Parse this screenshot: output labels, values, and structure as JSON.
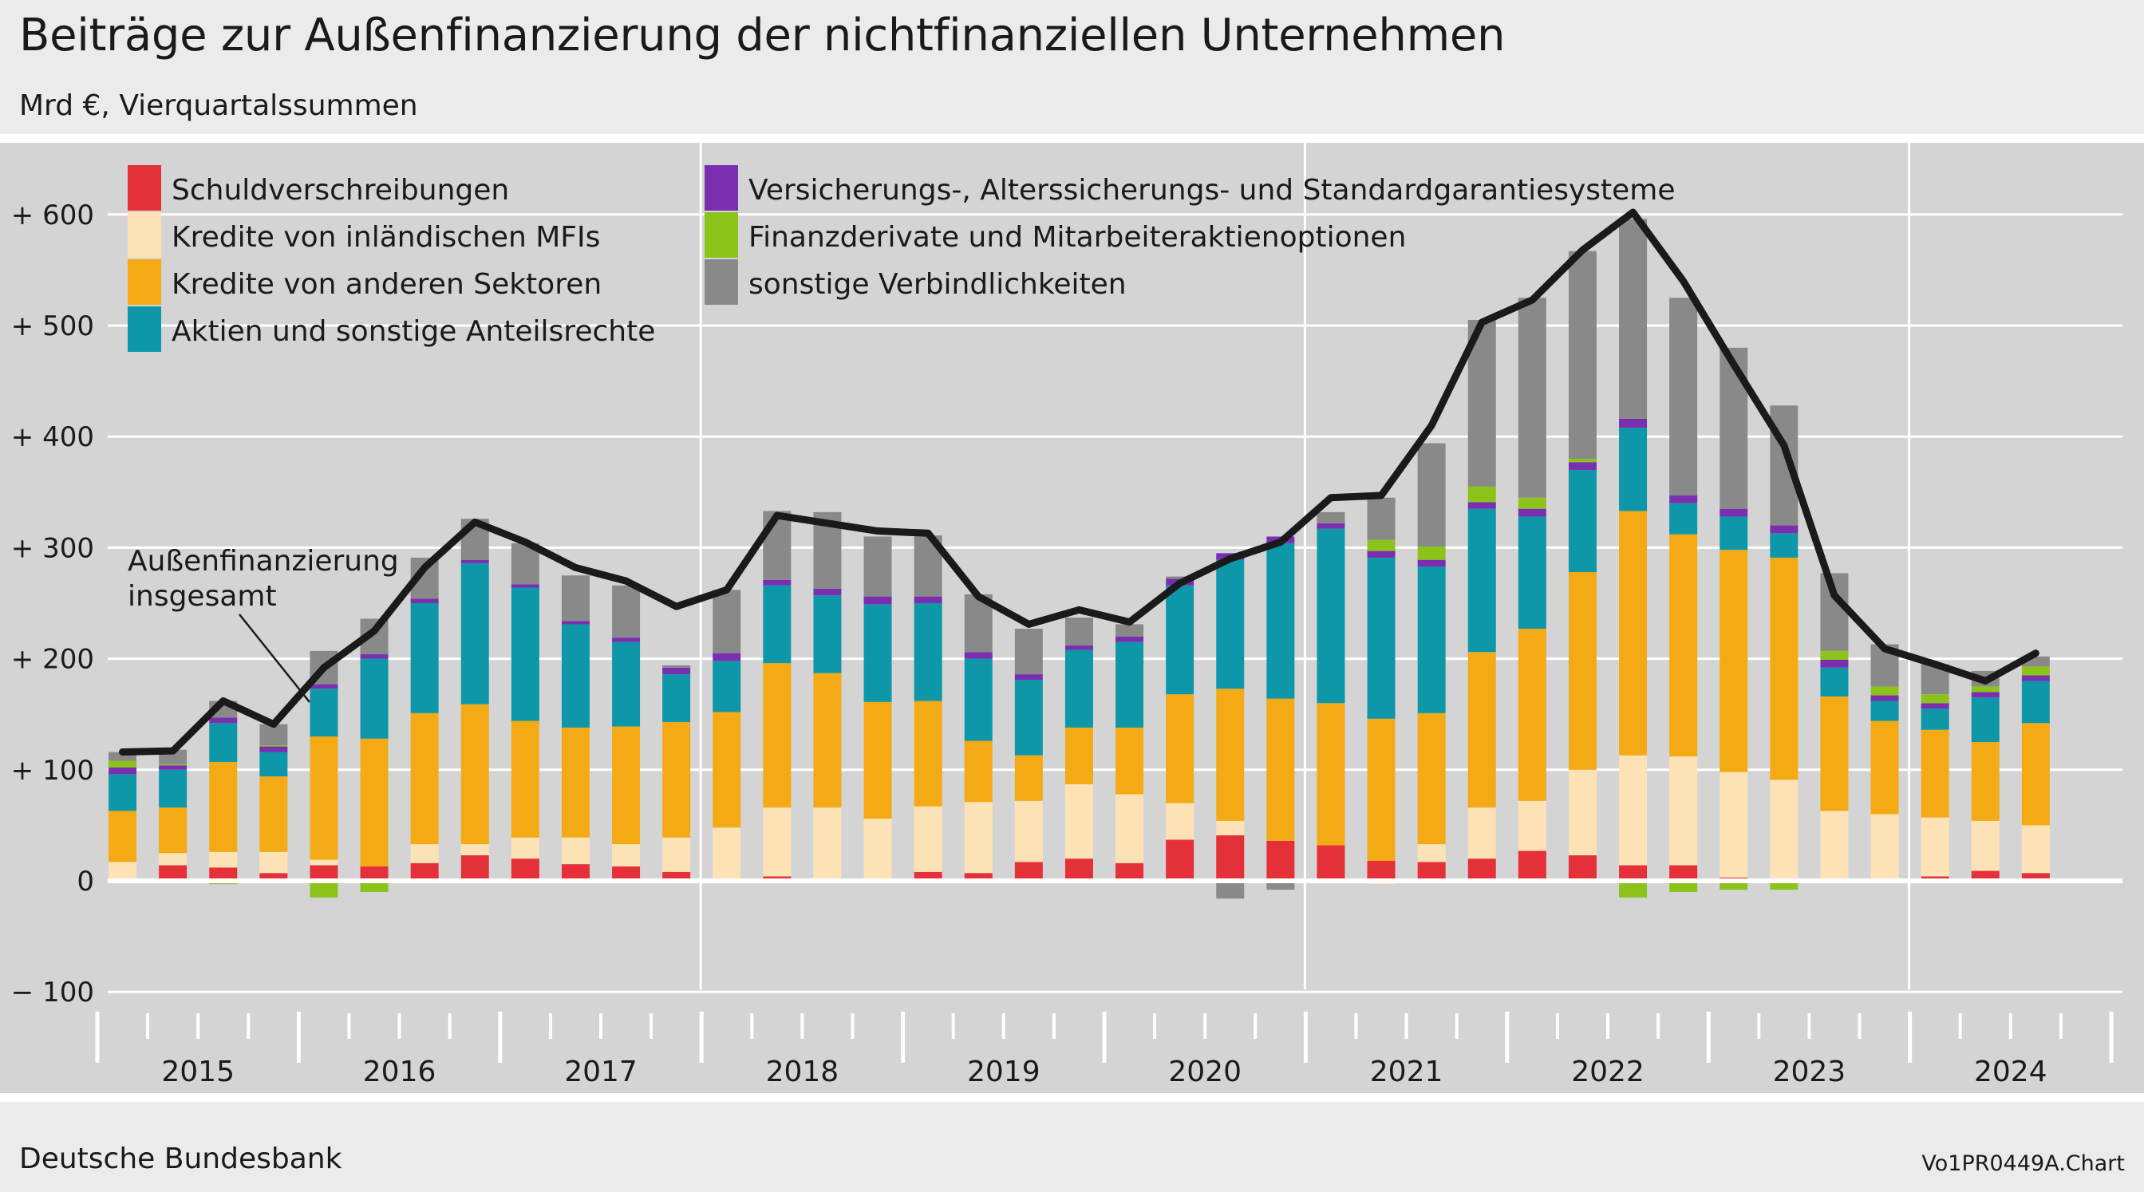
{
  "title": "Beiträge zur Außenfinanzierung der nichtfinanziellen Unternehmen",
  "subtitle": "Mrd €, Vierquartalssummen",
  "source": "Deutsche Bundesbank",
  "chart_id": "Vo1PR0449A.Chart",
  "chart_data": {
    "type": "bar",
    "stacked": true,
    "ylim": [
      -100,
      650
    ],
    "yticks": [
      -100,
      0,
      100,
      200,
      300,
      400,
      500,
      600
    ],
    "ytick_labels": [
      "− 100",
      "0",
      "+ 100",
      "+ 200",
      "+ 300",
      "+ 400",
      "+ 500",
      "+ 600"
    ],
    "grid": true,
    "legend_position": "top-left",
    "categories": [
      "2015Q1",
      "2015Q2",
      "2015Q3",
      "2015Q4",
      "2016Q1",
      "2016Q2",
      "2016Q3",
      "2016Q4",
      "2017Q1",
      "2017Q2",
      "2017Q3",
      "2017Q4",
      "2018Q1",
      "2018Q2",
      "2018Q3",
      "2018Q4",
      "2019Q1",
      "2019Q2",
      "2019Q3",
      "2019Q4",
      "2020Q1",
      "2020Q2",
      "2020Q3",
      "2020Q4",
      "2021Q1",
      "2021Q2",
      "2021Q3",
      "2021Q4",
      "2022Q1",
      "2022Q2",
      "2022Q3",
      "2022Q4",
      "2023Q1",
      "2023Q2",
      "2023Q3",
      "2023Q4",
      "2024Q1",
      "2024Q2",
      "2024Q3"
    ],
    "x_year_labels": [
      "2015",
      "2016",
      "2017",
      "2018",
      "2019",
      "2020",
      "2021",
      "2022",
      "2023",
      "2024"
    ],
    "series": [
      {
        "name": "Schuldverschreibungen",
        "color": "#e5303a",
        "values": [
          2,
          14,
          12,
          7,
          14,
          13,
          16,
          23,
          20,
          15,
          13,
          8,
          0,
          4,
          0,
          0,
          8,
          7,
          17,
          20,
          16,
          37,
          41,
          36,
          32,
          18,
          17,
          20,
          27,
          23,
          14,
          14,
          3,
          1,
          1,
          1,
          4,
          9,
          7
        ]
      },
      {
        "name": "Kredite von inländischen MFIs",
        "color": "#fde2b5",
        "values": [
          15,
          11,
          14,
          19,
          5,
          0,
          17,
          10,
          19,
          24,
          20,
          31,
          48,
          62,
          66,
          56,
          59,
          64,
          55,
          67,
          62,
          33,
          13,
          0,
          0,
          -3,
          16,
          46,
          45,
          77,
          99,
          98,
          95,
          90,
          62,
          59,
          53,
          45,
          43
        ]
      },
      {
        "name": "Kredite von anderen Sektoren",
        "color": "#f3aa15",
        "values": [
          46,
          41,
          81,
          68,
          111,
          115,
          118,
          126,
          105,
          99,
          106,
          104,
          104,
          130,
          121,
          105,
          95,
          55,
          41,
          51,
          60,
          98,
          119,
          128,
          128,
          128,
          118,
          140,
          155,
          178,
          220,
          200,
          200,
          200,
          103,
          84,
          79,
          71,
          92
        ]
      },
      {
        "name": "Aktien und sonstige Anteilsrechte",
        "color": "#0e97a8",
        "values": [
          33,
          34,
          35,
          22,
          43,
          72,
          99,
          127,
          120,
          93,
          76,
          43,
          46,
          70,
          70,
          88,
          88,
          74,
          68,
          70,
          77,
          98,
          116,
          140,
          157,
          145,
          132,
          129,
          101,
          92,
          75,
          28,
          30,
          22,
          26,
          18,
          19,
          40,
          38
        ]
      },
      {
        "name": "Versicherungs-, Alterssicherungs- und Standardgarantiesysteme",
        "color": "#7a2fb0",
        "values": [
          6,
          4,
          5,
          5,
          4,
          4,
          4,
          3,
          3,
          3,
          4,
          6,
          7,
          5,
          6,
          7,
          6,
          6,
          5,
          4,
          5,
          6,
          6,
          6,
          5,
          6,
          6,
          6,
          7,
          7,
          8,
          7,
          7,
          7,
          7,
          5,
          5,
          5,
          5
        ]
      },
      {
        "name": "Finanzderivate und Mitarbeiteraktienoptionen",
        "color": "#8bc31a",
        "values": [
          6,
          1,
          -3,
          1,
          -15,
          -10,
          -2,
          0,
          0,
          0,
          0,
          0,
          0,
          0,
          0,
          0,
          0,
          0,
          0,
          0,
          0,
          0,
          0,
          0,
          0,
          10,
          12,
          14,
          10,
          3,
          -15,
          -10,
          -8,
          -8,
          8,
          8,
          8,
          5,
          8
        ]
      },
      {
        "name": "sonstige Verbindlichkeiten",
        "color": "#898989",
        "values": [
          8,
          13,
          15,
          19,
          30,
          32,
          37,
          37,
          37,
          41,
          47,
          2,
          57,
          62,
          69,
          54,
          55,
          52,
          41,
          25,
          11,
          2,
          -16,
          -8,
          10,
          38,
          93,
          150,
          180,
          187,
          180,
          178,
          145,
          108,
          70,
          38,
          27,
          14,
          9
        ]
      }
    ],
    "line": {
      "name": "Außenfinanzierung insgesamt",
      "color": "#1a1a1a",
      "values": [
        116,
        117,
        162,
        141,
        192,
        225,
        282,
        323,
        305,
        282,
        270,
        247,
        262,
        329,
        322,
        315,
        313,
        256,
        231,
        244,
        233,
        268,
        290,
        305,
        345,
        347,
        410,
        503,
        523,
        568,
        602,
        540,
        465,
        392,
        257,
        209,
        195,
        180,
        205
      ]
    },
    "annotation": "Außenfinanzierung\ninsgesamt"
  }
}
